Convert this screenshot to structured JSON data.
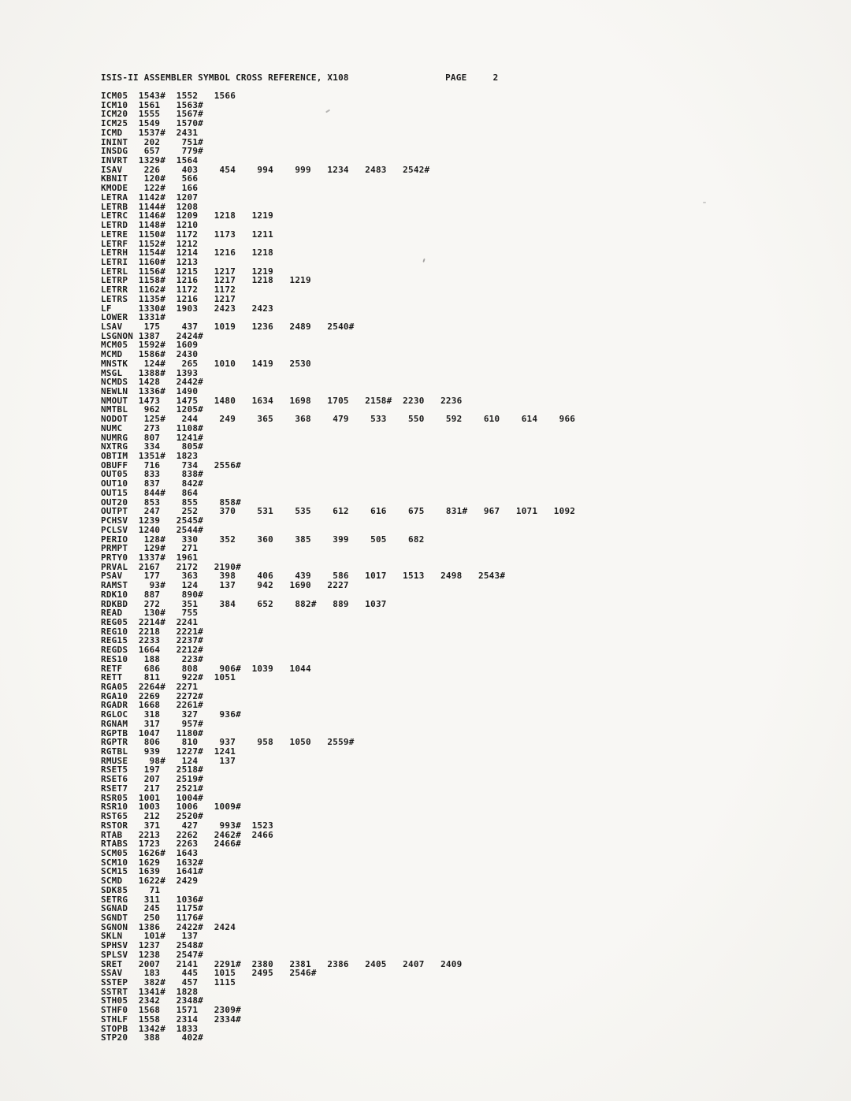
{
  "page": {
    "title": "ISIS-II ASSEMBLER SYMBOL CROSS REFERENCE, X108",
    "page_label": "PAGE",
    "page_number": "2"
  },
  "xref": {
    "definition_marker": "#",
    "rows": [
      {
        "symbol": "ICM05",
        "refs": [
          "1543#",
          "1552",
          "1566"
        ]
      },
      {
        "symbol": "ICM10",
        "refs": [
          "1561",
          "1563#"
        ]
      },
      {
        "symbol": "ICM20",
        "refs": [
          "1555",
          "1567#"
        ]
      },
      {
        "symbol": "ICM25",
        "refs": [
          "1549",
          "1570#"
        ]
      },
      {
        "symbol": "ICMD",
        "refs": [
          "1537#",
          "2431"
        ]
      },
      {
        "symbol": "ININT",
        "refs": [
          "202",
          "751#"
        ]
      },
      {
        "symbol": "INSDG",
        "refs": [
          "657",
          "779#"
        ]
      },
      {
        "symbol": "INVRT",
        "refs": [
          "1329#",
          "1564"
        ]
      },
      {
        "symbol": "ISAV",
        "refs": [
          "226",
          "403",
          "454",
          "994",
          "999",
          "1234",
          "2483",
          "2542#"
        ]
      },
      {
        "symbol": "KBNIT",
        "refs": [
          "120#",
          "566"
        ]
      },
      {
        "symbol": "KMODE",
        "refs": [
          "122#",
          "166"
        ]
      },
      {
        "symbol": "LETRA",
        "refs": [
          "1142#",
          "1207"
        ]
      },
      {
        "symbol": "LETRB",
        "refs": [
          "1144#",
          "1208"
        ]
      },
      {
        "symbol": "LETRC",
        "refs": [
          "1146#",
          "1209",
          "1218",
          "1219"
        ]
      },
      {
        "symbol": "LETRD",
        "refs": [
          "1148#",
          "1210"
        ]
      },
      {
        "symbol": "LETRE",
        "refs": [
          "1150#",
          "1172",
          "1173",
          "1211"
        ]
      },
      {
        "symbol": "LETRF",
        "refs": [
          "1152#",
          "1212"
        ]
      },
      {
        "symbol": "LETRH",
        "refs": [
          "1154#",
          "1214",
          "1216",
          "1218"
        ]
      },
      {
        "symbol": "LETRI",
        "refs": [
          "1160#",
          "1213"
        ]
      },
      {
        "symbol": "LETRL",
        "refs": [
          "1156#",
          "1215",
          "1217",
          "1219"
        ]
      },
      {
        "symbol": "LETRP",
        "refs": [
          "1158#",
          "1216",
          "1217",
          "1218",
          "1219"
        ]
      },
      {
        "symbol": "LETRR",
        "refs": [
          "1162#",
          "1172",
          "1172"
        ]
      },
      {
        "symbol": "LETRS",
        "refs": [
          "1135#",
          "1216",
          "1217"
        ]
      },
      {
        "symbol": "LF",
        "refs": [
          "1330#",
          "1903",
          "2423",
          "2423"
        ]
      },
      {
        "symbol": "LOWER",
        "refs": [
          "1331#"
        ]
      },
      {
        "symbol": "LSAV",
        "refs": [
          "175",
          "437",
          "1019",
          "1236",
          "2489",
          "2540#"
        ]
      },
      {
        "symbol": "LSGNON",
        "refs": [
          "1387",
          "2424#"
        ]
      },
      {
        "symbol": "MCM05",
        "refs": [
          "1592#",
          "1609"
        ]
      },
      {
        "symbol": "MCMD",
        "refs": [
          "1586#",
          "2430"
        ]
      },
      {
        "symbol": "MNSTK",
        "refs": [
          "124#",
          "265",
          "1010",
          "1419",
          "2530"
        ]
      },
      {
        "symbol": "MSGL",
        "refs": [
          "1388#",
          "1393"
        ]
      },
      {
        "symbol": "NCMDS",
        "refs": [
          "1428",
          "2442#"
        ]
      },
      {
        "symbol": "NEWLN",
        "refs": [
          "1336#",
          "1490"
        ]
      },
      {
        "symbol": "NMOUT",
        "refs": [
          "1473",
          "1475",
          "1480",
          "1634",
          "1698",
          "1705",
          "2158#",
          "2230",
          "2236"
        ]
      },
      {
        "symbol": "NMTBL",
        "refs": [
          "962",
          "1205#"
        ]
      },
      {
        "symbol": "NODOT",
        "refs": [
          "125#",
          "244",
          "249",
          "365",
          "368",
          "479",
          "533",
          "550",
          "592",
          "610",
          "614",
          "966"
        ]
      },
      {
        "symbol": "NUMC",
        "refs": [
          "273",
          "1108#"
        ]
      },
      {
        "symbol": "NUMRG",
        "refs": [
          "807",
          "1241#"
        ]
      },
      {
        "symbol": "NXTRG",
        "refs": [
          "334",
          "805#"
        ]
      },
      {
        "symbol": "OBTIM",
        "refs": [
          "1351#",
          "1823"
        ]
      },
      {
        "symbol": "OBUFF",
        "refs": [
          "716",
          "734",
          "2556#"
        ]
      },
      {
        "symbol": "OUT05",
        "refs": [
          "833",
          "838#"
        ]
      },
      {
        "symbol": "OUT10",
        "refs": [
          "837",
          "842#"
        ]
      },
      {
        "symbol": "OUT15",
        "refs": [
          "844#",
          "864"
        ]
      },
      {
        "symbol": "OUT20",
        "refs": [
          "853",
          "855",
          "858#"
        ]
      },
      {
        "symbol": "OUTPT",
        "refs": [
          "247",
          "252",
          "370",
          "531",
          "535",
          "612",
          "616",
          "675",
          "831#",
          "967",
          "1071",
          "1092"
        ]
      },
      {
        "symbol": "PCHSV",
        "refs": [
          "1239",
          "2545#"
        ]
      },
      {
        "symbol": "PCLSV",
        "refs": [
          "1240",
          "2544#"
        ]
      },
      {
        "symbol": "PERIO",
        "refs": [
          "128#",
          "330",
          "352",
          "360",
          "385",
          "399",
          "505",
          "682"
        ]
      },
      {
        "symbol": "PRMPT",
        "refs": [
          "129#",
          "271"
        ]
      },
      {
        "symbol": "PRTY0",
        "refs": [
          "1337#",
          "1961"
        ]
      },
      {
        "symbol": "PRVAL",
        "refs": [
          "2167",
          "2172",
          "2190#"
        ]
      },
      {
        "symbol": "PSAV",
        "refs": [
          "177",
          "363",
          "398",
          "406",
          "439",
          "586",
          "1017",
          "1513",
          "2498",
          "2543#"
        ]
      },
      {
        "symbol": "RAMST",
        "refs": [
          "93#",
          "124",
          "137",
          "942",
          "1690",
          "2227"
        ]
      },
      {
        "symbol": "RDK10",
        "refs": [
          "887",
          "890#"
        ]
      },
      {
        "symbol": "RDKBD",
        "refs": [
          "272",
          "351",
          "384",
          "652",
          "882#",
          "889",
          "1037"
        ]
      },
      {
        "symbol": "READ",
        "refs": [
          "130#",
          "755"
        ]
      },
      {
        "symbol": "REG05",
        "refs": [
          "2214#",
          "2241"
        ]
      },
      {
        "symbol": "REG10",
        "refs": [
          "2218",
          "2221#"
        ]
      },
      {
        "symbol": "REG15",
        "refs": [
          "2233",
          "2237#"
        ]
      },
      {
        "symbol": "REGDS",
        "refs": [
          "1664",
          "2212#"
        ]
      },
      {
        "symbol": "RES10",
        "refs": [
          "188",
          "223#"
        ]
      },
      {
        "symbol": "RETF",
        "refs": [
          "686",
          "808",
          "906#",
          "1039",
          "1044"
        ]
      },
      {
        "symbol": "RETT",
        "refs": [
          "811",
          "922#",
          "1051"
        ]
      },
      {
        "symbol": "RGA05",
        "refs": [
          "2264#",
          "2271"
        ]
      },
      {
        "symbol": "RGA10",
        "refs": [
          "2269",
          "2272#"
        ]
      },
      {
        "symbol": "RGADR",
        "refs": [
          "1668",
          "2261#"
        ]
      },
      {
        "symbol": "RGLOC",
        "refs": [
          "318",
          "327",
          "936#"
        ]
      },
      {
        "symbol": "RGNAM",
        "refs": [
          "317",
          "957#"
        ]
      },
      {
        "symbol": "RGPTB",
        "refs": [
          "1047",
          "1180#"
        ]
      },
      {
        "symbol": "RGPTR",
        "refs": [
          "806",
          "810",
          "937",
          "958",
          "1050",
          "2559#"
        ]
      },
      {
        "symbol": "RGTBL",
        "refs": [
          "939",
          "1227#",
          "1241"
        ]
      },
      {
        "symbol": "RMUSE",
        "refs": [
          "98#",
          "124",
          "137"
        ]
      },
      {
        "symbol": "RSET5",
        "refs": [
          "197",
          "2518#"
        ]
      },
      {
        "symbol": "RSET6",
        "refs": [
          "207",
          "2519#"
        ]
      },
      {
        "symbol": "RSET7",
        "refs": [
          "217",
          "2521#"
        ]
      },
      {
        "symbol": "RSR05",
        "refs": [
          "1001",
          "1004#"
        ]
      },
      {
        "symbol": "RSR10",
        "refs": [
          "1003",
          "1006",
          "1009#"
        ]
      },
      {
        "symbol": "RST65",
        "refs": [
          "212",
          "2520#"
        ]
      },
      {
        "symbol": "RSTOR",
        "refs": [
          "371",
          "427",
          "993#",
          "1523"
        ]
      },
      {
        "symbol": "RTAB",
        "refs": [
          "2213",
          "2262",
          "2462#",
          "2466"
        ]
      },
      {
        "symbol": "RTABS",
        "refs": [
          "1723",
          "2263",
          "2466#"
        ]
      },
      {
        "symbol": "SCM05",
        "refs": [
          "1626#",
          "1643"
        ]
      },
      {
        "symbol": "SCM10",
        "refs": [
          "1629",
          "1632#"
        ]
      },
      {
        "symbol": "SCM15",
        "refs": [
          "1639",
          "1641#"
        ]
      },
      {
        "symbol": "SCMD",
        "refs": [
          "1622#",
          "2429"
        ]
      },
      {
        "symbol": "SDK85",
        "refs": [
          "71"
        ]
      },
      {
        "symbol": "SETRG",
        "refs": [
          "311",
          "1036#"
        ]
      },
      {
        "symbol": "SGNAD",
        "refs": [
          "245",
          "1175#"
        ]
      },
      {
        "symbol": "SGNDT",
        "refs": [
          "250",
          "1176#"
        ]
      },
      {
        "symbol": "SGNON",
        "refs": [
          "1386",
          "2422#",
          "2424"
        ]
      },
      {
        "symbol": "SKLN",
        "refs": [
          "101#",
          "137"
        ]
      },
      {
        "symbol": "SPHSV",
        "refs": [
          "1237",
          "2548#"
        ]
      },
      {
        "symbol": "SPLSV",
        "refs": [
          "1238",
          "2547#"
        ]
      },
      {
        "symbol": "SRET",
        "refs": [
          "2007",
          "2141",
          "2291#",
          "2380",
          "2381",
          "2386",
          "2405",
          "2407",
          "2409"
        ]
      },
      {
        "symbol": "SSAV",
        "refs": [
          "183",
          "445",
          "1015",
          "2495",
          "2546#"
        ]
      },
      {
        "symbol": "SSTEP",
        "refs": [
          "382#",
          "457",
          "1115"
        ]
      },
      {
        "symbol": "SSTRT",
        "refs": [
          "1341#",
          "1828"
        ]
      },
      {
        "symbol": "STH05",
        "refs": [
          "2342",
          "2348#"
        ]
      },
      {
        "symbol": "STHF0",
        "refs": [
          "1568",
          "1571",
          "2309#"
        ]
      },
      {
        "symbol": "STHLF",
        "refs": [
          "1558",
          "2314",
          "2334#"
        ]
      },
      {
        "symbol": "STOPB",
        "refs": [
          "1342#",
          "1833"
        ]
      },
      {
        "symbol": "STP20",
        "refs": [
          "388",
          "402#"
        ]
      }
    ]
  }
}
